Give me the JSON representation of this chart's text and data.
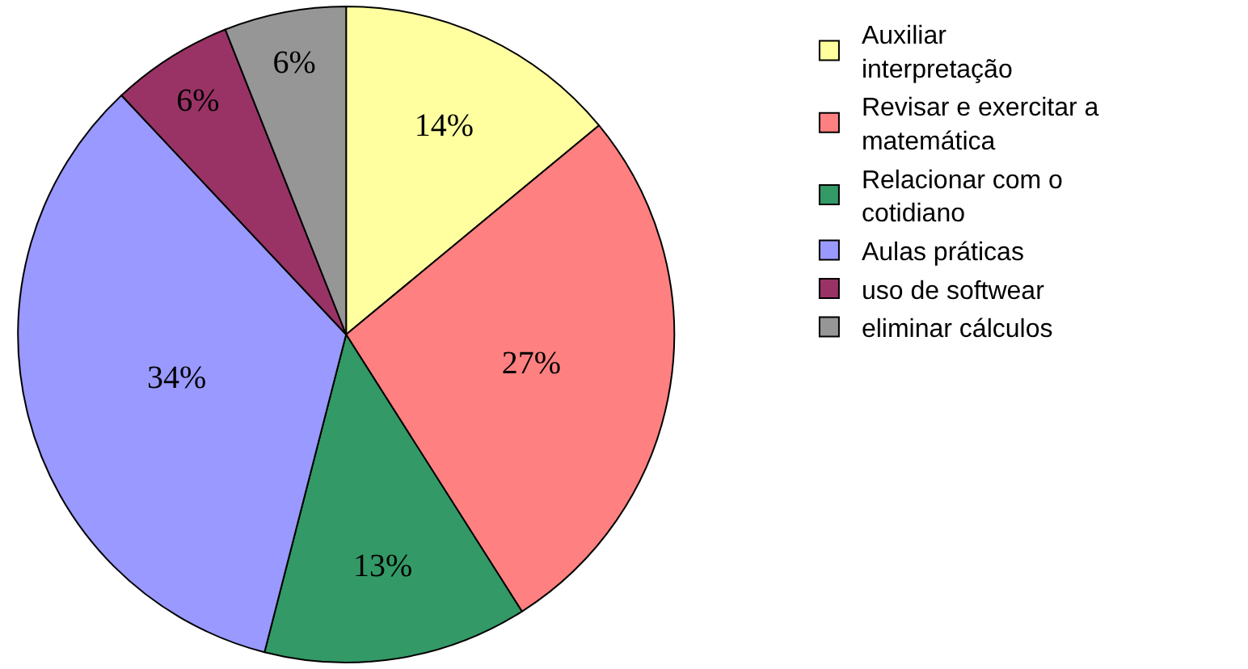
{
  "chart_data": {
    "type": "pie",
    "categories": [
      "Auxiliar interpretação",
      "Revisar e exercitar a matemática",
      "Relacionar com o cotidiano",
      "Aulas práticas",
      "uso de softwear",
      "eliminar cálculos"
    ],
    "values": [
      14,
      27,
      13,
      34,
      6,
      6
    ],
    "value_labels": [
      "14%",
      "27%",
      "13%",
      "34%",
      "6%",
      "6%"
    ],
    "colors": [
      "#ffffa0",
      "#ff8080",
      "#339966",
      "#9999ff",
      "#993366",
      "#969696"
    ],
    "legend": "right"
  }
}
